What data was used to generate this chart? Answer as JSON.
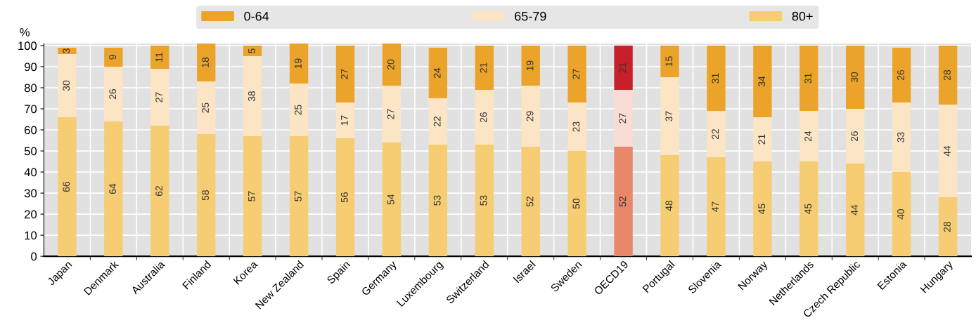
{
  "chart_data": {
    "type": "bar",
    "stacked": true,
    "ylabel": "%",
    "categories": [
      "Japan",
      "Denmark",
      "Australia",
      "Finland",
      "Korea",
      "New Zealand",
      "Spain",
      "Germany",
      "Luxembourg",
      "Switzerland",
      "Israel",
      "Sweden",
      "OECD19",
      "Portugal",
      "Slovenia",
      "Norway",
      "Netherlands",
      "Czech Republic",
      "Estonia",
      "Hungary"
    ],
    "series": [
      {
        "name": "80+",
        "color": "#f6cd72",
        "colors": [
          "#f6cd72",
          "#f6cd72",
          "#f6cd72",
          "#f6cd72",
          "#f6cd72",
          "#f6cd72",
          "#f6cd72",
          "#f6cd72",
          "#f6cd72",
          "#f6cd72",
          "#f6cd72",
          "#f6cd72",
          "#e8876a",
          "#f6cd72",
          "#f6cd72",
          "#f6cd72",
          "#f6cd72",
          "#f6cd72",
          "#f6cd72",
          "#f6cd72"
        ],
        "values": [
          66,
          64,
          62,
          58,
          57,
          57,
          56,
          54,
          53,
          53,
          52,
          50,
          52,
          48,
          47,
          45,
          45,
          44,
          40,
          28
        ]
      },
      {
        "name": "65-79",
        "color": "#fce5c4",
        "colors": [
          "#fce5c4",
          "#fce5c4",
          "#fce5c4",
          "#fce5c4",
          "#fce5c4",
          "#fce5c4",
          "#fce5c4",
          "#fce5c4",
          "#fce5c4",
          "#fce5c4",
          "#fce5c4",
          "#fce5c4",
          "#f9dcd3",
          "#fce5c4",
          "#fce5c4",
          "#fce5c4",
          "#fce5c4",
          "#fce5c4",
          "#fce5c4",
          "#fce5c4"
        ],
        "values": [
          30,
          26,
          27,
          25,
          38,
          25,
          17,
          27,
          22,
          26,
          29,
          23,
          27,
          37,
          22,
          21,
          24,
          26,
          33,
          44
        ]
      },
      {
        "name": "0-64",
        "color": "#eba32a",
        "colors": [
          "#eba32a",
          "#eba32a",
          "#eba32a",
          "#eba32a",
          "#eba32a",
          "#eba32a",
          "#eba32a",
          "#eba32a",
          "#eba32a",
          "#eba32a",
          "#eba32a",
          "#eba32a",
          "#c8202b",
          "#eba32a",
          "#eba32a",
          "#eba32a",
          "#eba32a",
          "#eba32a",
          "#eba32a",
          "#eba32a"
        ],
        "values": [
          3,
          9,
          11,
          18,
          5,
          19,
          27,
          20,
          24,
          21,
          19,
          27,
          21,
          15,
          31,
          34,
          31,
          30,
          26,
          28
        ]
      }
    ],
    "ylim": [
      0,
      101
    ],
    "yticks": [
      0,
      10,
      20,
      30,
      40,
      50,
      60,
      70,
      80,
      90,
      100
    ],
    "grid": true,
    "legend": "top",
    "data_labels": true
  }
}
